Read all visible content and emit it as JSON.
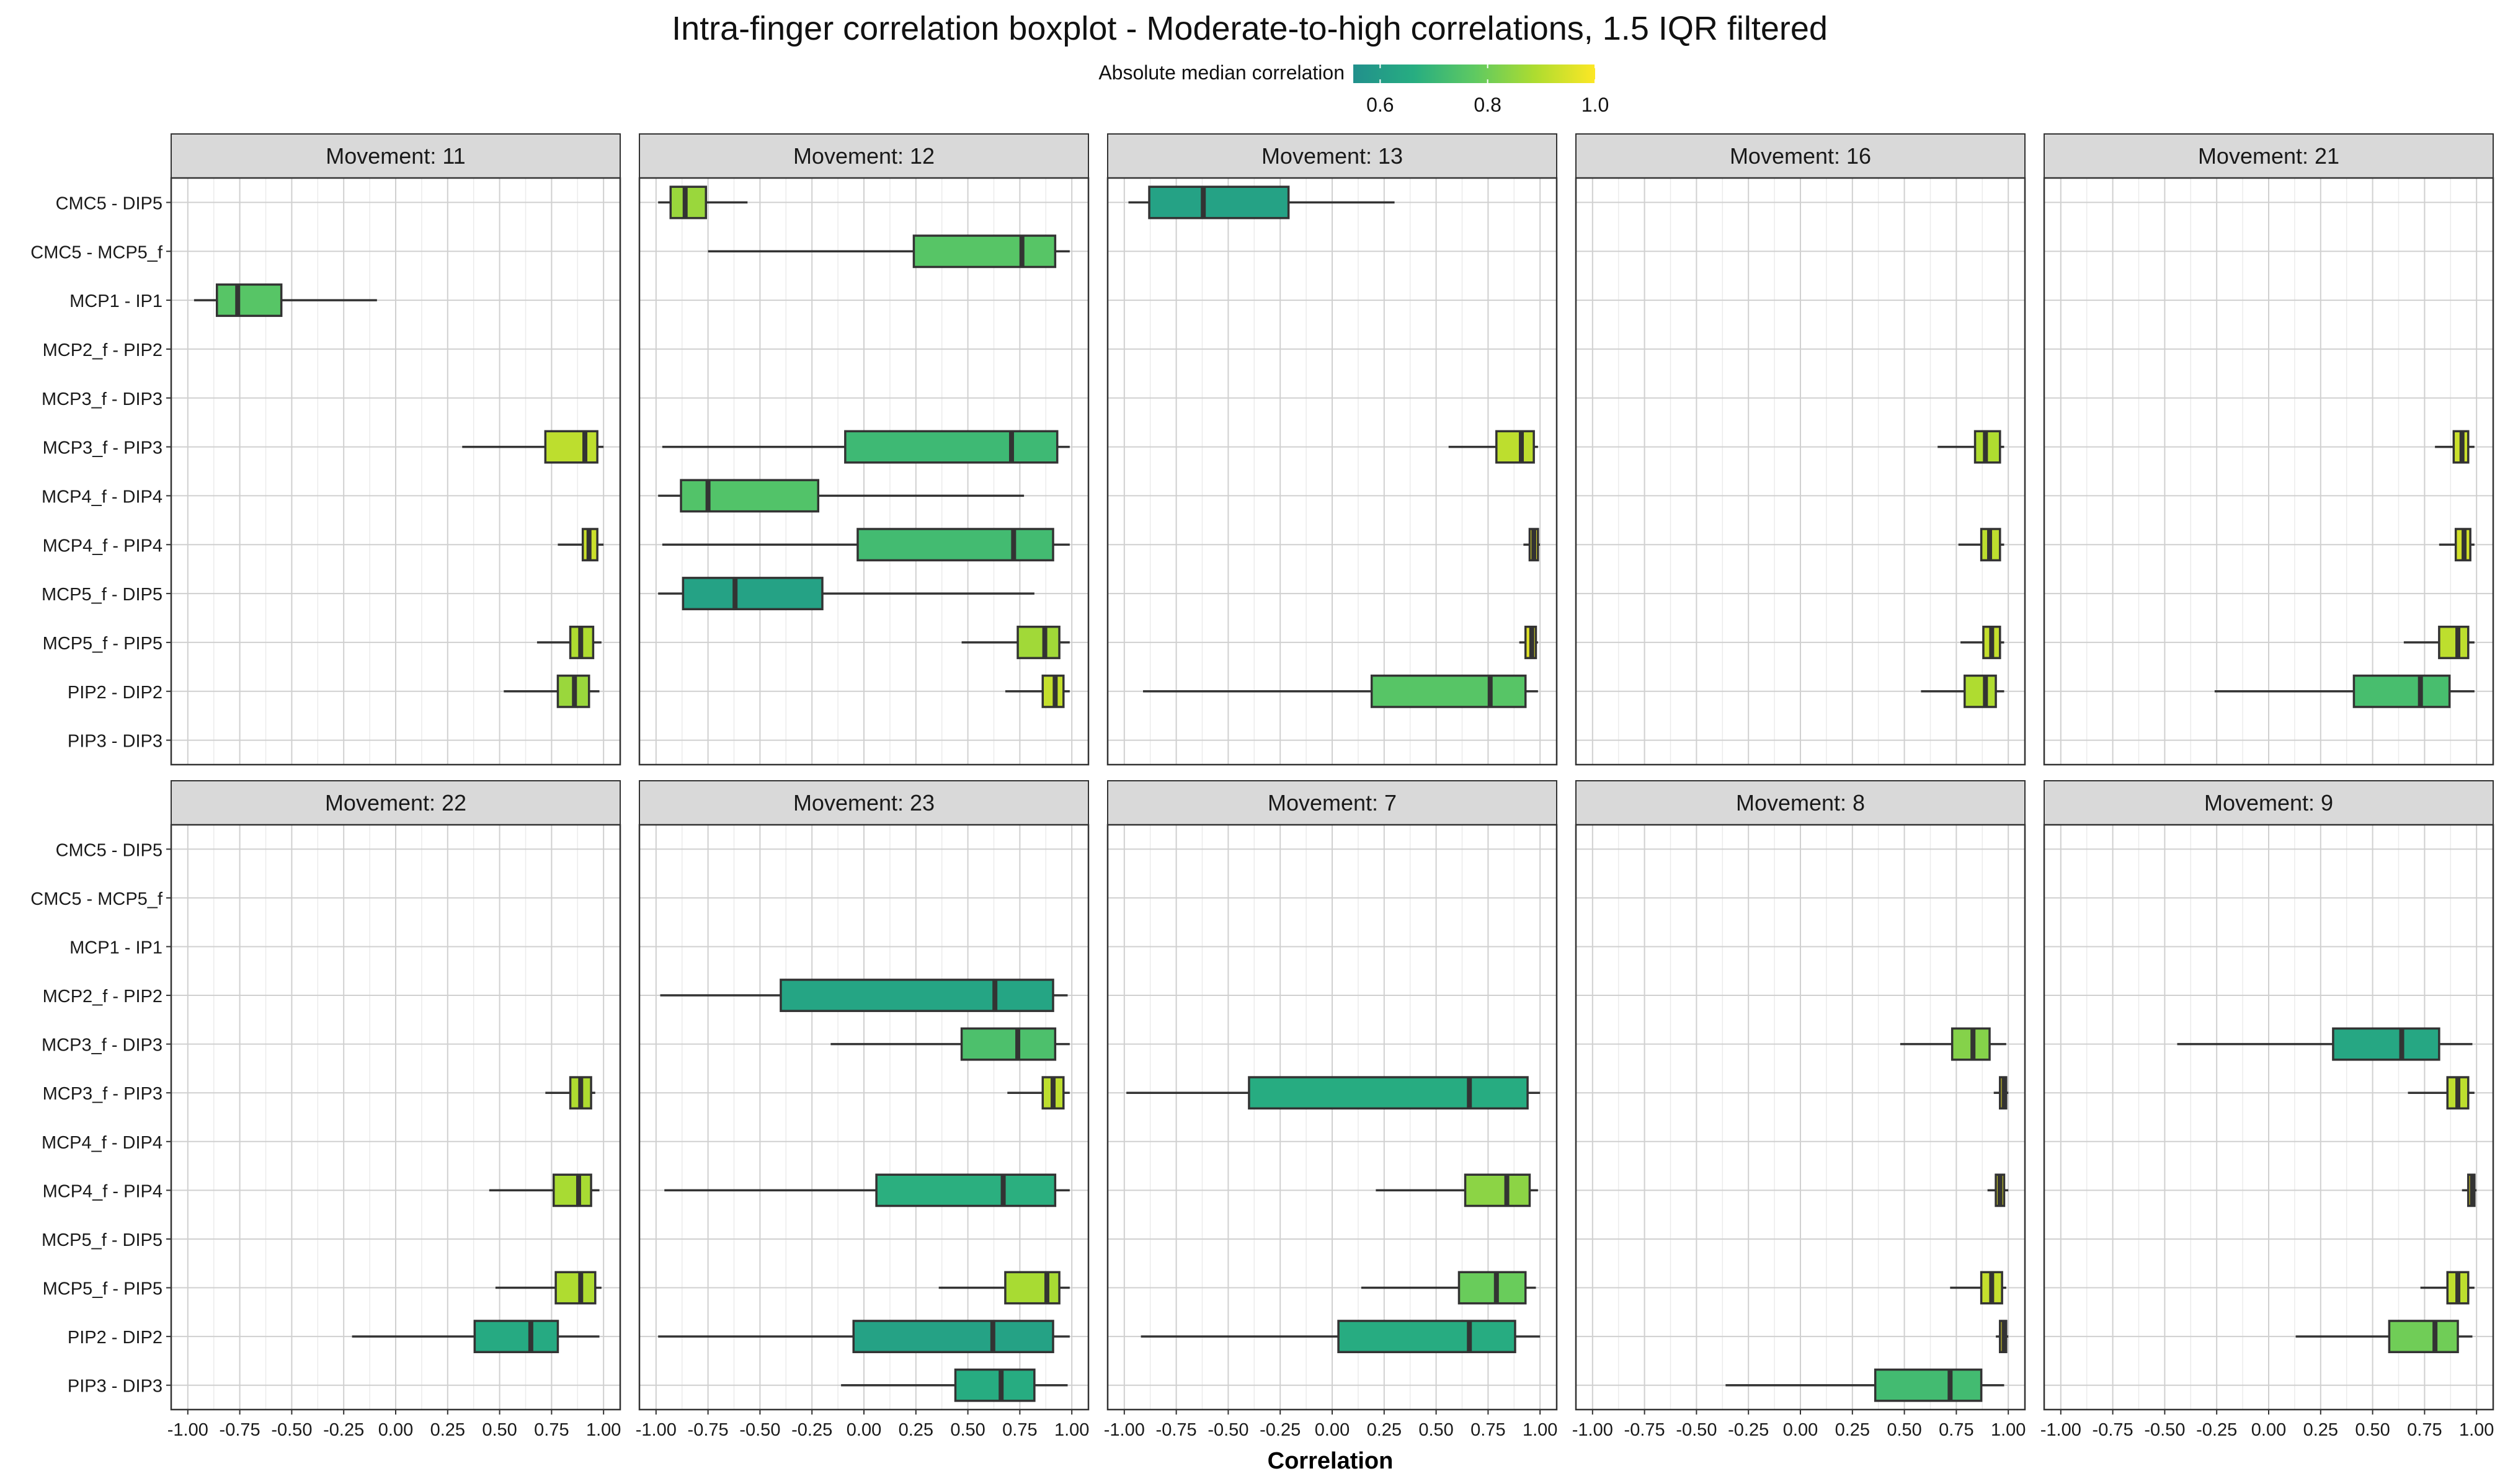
{
  "chart_data": {
    "type": "boxplot",
    "title": "Intra-finger correlation boxplot - Moderate-to-high correlations, 1.5 IQR filtered",
    "xlabel": "Correlation",
    "ylabel": "",
    "xlim": [
      -1.08,
      1.08
    ],
    "x_ticks": [
      "-1.00",
      "-0.75",
      "-0.50",
      "-0.25",
      "0.00",
      "0.25",
      "0.50",
      "0.75",
      "1.00"
    ],
    "grid": true,
    "legend": {
      "title": "Absolute median correlation",
      "placement": "top-center",
      "range": [
        0.55,
        1.0
      ],
      "ticks": [
        "0.6",
        "0.8",
        "1.0"
      ],
      "colors": [
        "#21908c",
        "#27ad81",
        "#5ec962",
        "#addc30",
        "#fde725"
      ]
    },
    "strip_fill": "#d9d9d9",
    "box_outline": "#333333",
    "categories": [
      "PIP3 - DIP3",
      "PIP2 - DIP2",
      "MCP5_f - PIP5",
      "MCP5_f - DIP5",
      "MCP4_f - PIP4",
      "MCP4_f - DIP4",
      "MCP3_f - PIP3",
      "MCP3_f - DIP3",
      "MCP2_f - PIP2",
      "MCP1 - IP1",
      "CMC5 - MCP5_f",
      "CMC5 - DIP5"
    ],
    "panels": [
      {
        "name": "Movement: 11",
        "boxes": [
          {
            "cat": "PIP2 - DIP2",
            "stats": [
              0.52,
              0.78,
              0.86,
              0.93,
              0.98
            ]
          },
          {
            "cat": "MCP5_f - PIP5",
            "stats": [
              0.68,
              0.84,
              0.89,
              0.95,
              0.99
            ]
          },
          {
            "cat": "MCP4_f - PIP4",
            "stats": [
              0.78,
              0.9,
              0.93,
              0.97,
              1.0
            ]
          },
          {
            "cat": "MCP3_f - PIP3",
            "stats": [
              0.32,
              0.72,
              0.91,
              0.97,
              1.0
            ]
          },
          {
            "cat": "MCP1 - IP1",
            "stats": [
              -0.97,
              -0.86,
              -0.76,
              -0.55,
              -0.09
            ]
          }
        ]
      },
      {
        "name": "Movement: 12",
        "boxes": [
          {
            "cat": "PIP2 - DIP2",
            "stats": [
              0.68,
              0.86,
              0.92,
              0.96,
              0.99
            ]
          },
          {
            "cat": "MCP5_f - PIP5",
            "stats": [
              0.47,
              0.74,
              0.87,
              0.94,
              0.99
            ]
          },
          {
            "cat": "MCP5_f - DIP5",
            "stats": [
              -0.99,
              -0.87,
              -0.62,
              -0.2,
              0.82
            ]
          },
          {
            "cat": "MCP4_f - PIP4",
            "stats": [
              -0.97,
              -0.03,
              0.72,
              0.91,
              0.99
            ]
          },
          {
            "cat": "MCP4_f - DIP4",
            "stats": [
              -0.99,
              -0.88,
              -0.75,
              -0.22,
              0.77
            ]
          },
          {
            "cat": "MCP3_f - PIP3",
            "stats": [
              -0.97,
              -0.09,
              0.71,
              0.93,
              0.99
            ]
          },
          {
            "cat": "CMC5 - MCP5_f",
            "stats": [
              -0.75,
              0.24,
              0.76,
              0.92,
              0.99
            ]
          },
          {
            "cat": "CMC5 - DIP5",
            "stats": [
              -0.99,
              -0.93,
              -0.86,
              -0.76,
              -0.56
            ]
          }
        ]
      },
      {
        "name": "Movement: 13",
        "boxes": [
          {
            "cat": "PIP2 - DIP2",
            "stats": [
              -0.91,
              0.19,
              0.76,
              0.93,
              0.99
            ]
          },
          {
            "cat": "MCP5_f - PIP5",
            "stats": [
              0.9,
              0.93,
              0.96,
              0.98,
              0.99
            ]
          },
          {
            "cat": "MCP4_f - PIP4",
            "stats": [
              0.92,
              0.95,
              0.97,
              0.99,
              1.0
            ]
          },
          {
            "cat": "MCP3_f - PIP3",
            "stats": [
              0.56,
              0.79,
              0.91,
              0.97,
              0.99
            ]
          },
          {
            "cat": "CMC5 - DIP5",
            "stats": [
              -0.98,
              -0.88,
              -0.62,
              -0.21,
              0.3
            ]
          }
        ]
      },
      {
        "name": "Movement: 16",
        "boxes": [
          {
            "cat": "PIP2 - DIP2",
            "stats": [
              0.58,
              0.79,
              0.89,
              0.94,
              0.98
            ]
          },
          {
            "cat": "MCP5_f - PIP5",
            "stats": [
              0.77,
              0.88,
              0.92,
              0.96,
              0.98
            ]
          },
          {
            "cat": "MCP4_f - PIP4",
            "stats": [
              0.76,
              0.87,
              0.91,
              0.96,
              0.98
            ]
          },
          {
            "cat": "MCP3_f - PIP3",
            "stats": [
              0.66,
              0.84,
              0.89,
              0.96,
              0.98
            ]
          }
        ]
      },
      {
        "name": "Movement: 21",
        "boxes": [
          {
            "cat": "PIP2 - DIP2",
            "stats": [
              -0.26,
              0.41,
              0.73,
              0.87,
              0.99
            ]
          },
          {
            "cat": "MCP5_f - PIP5",
            "stats": [
              0.65,
              0.82,
              0.91,
              0.96,
              0.99
            ]
          },
          {
            "cat": "MCP4_f - PIP4",
            "stats": [
              0.82,
              0.9,
              0.94,
              0.97,
              0.99
            ]
          },
          {
            "cat": "MCP3_f - PIP3",
            "stats": [
              0.8,
              0.89,
              0.93,
              0.96,
              0.99
            ]
          }
        ]
      },
      {
        "name": "Movement: 22",
        "boxes": [
          {
            "cat": "PIP3 - DIP3",
            "stats": [],
            "whisker_only": true
          },
          {
            "cat": "PIP2 - DIP2",
            "stats": [
              -0.21,
              0.38,
              0.65,
              0.78,
              0.98
            ]
          },
          {
            "cat": "MCP5_f - PIP5",
            "stats": [
              0.48,
              0.77,
              0.89,
              0.96,
              0.99
            ]
          },
          {
            "cat": "MCP4_f - PIP4",
            "stats": [
              0.45,
              0.76,
              0.88,
              0.94,
              0.98
            ]
          },
          {
            "cat": "MCP3_f - PIP3",
            "stats": [
              0.72,
              0.84,
              0.89,
              0.94,
              0.96
            ]
          }
        ]
      },
      {
        "name": "Movement: 23",
        "boxes": [
          {
            "cat": "PIP3 - DIP3",
            "stats": [
              -0.11,
              0.44,
              0.66,
              0.82,
              0.98
            ]
          },
          {
            "cat": "PIP2 - DIP2",
            "stats": [
              -0.99,
              -0.05,
              0.62,
              0.91,
              0.99
            ]
          },
          {
            "cat": "MCP5_f - PIP5",
            "stats": [
              0.36,
              0.68,
              0.88,
              0.94,
              0.99
            ]
          },
          {
            "cat": "MCP4_f - PIP4",
            "stats": [
              -0.96,
              0.06,
              0.67,
              0.92,
              0.99
            ]
          },
          {
            "cat": "MCP3_f - PIP3",
            "stats": [
              0.69,
              0.86,
              0.91,
              0.96,
              0.99
            ]
          },
          {
            "cat": "MCP3_f - DIP3",
            "stats": [
              -0.16,
              0.47,
              0.74,
              0.92,
              0.99
            ]
          },
          {
            "cat": "MCP2_f - PIP2",
            "stats": [
              -0.98,
              -0.4,
              0.63,
              0.91,
              0.98
            ]
          }
        ]
      },
      {
        "name": "Movement: 7",
        "boxes": [
          {
            "cat": "PIP2 - DIP2",
            "stats": [
              -0.92,
              0.03,
              0.66,
              0.88,
              1.0
            ]
          },
          {
            "cat": "MCP5_f - PIP5",
            "stats": [
              0.14,
              0.61,
              0.79,
              0.93,
              0.98
            ]
          },
          {
            "cat": "MCP4_f - PIP4",
            "stats": [
              0.21,
              0.64,
              0.84,
              0.95,
              0.99
            ]
          },
          {
            "cat": "MCP3_f - PIP3",
            "stats": [
              -0.99,
              -0.4,
              0.66,
              0.94,
              1.0
            ]
          }
        ]
      },
      {
        "name": "Movement: 8",
        "boxes": [
          {
            "cat": "PIP3 - DIP3",
            "stats": [
              -0.36,
              0.36,
              0.72,
              0.87,
              0.98
            ]
          },
          {
            "cat": "PIP2 - DIP2",
            "stats": [
              0.94,
              0.96,
              0.98,
              0.99,
              1.0
            ]
          },
          {
            "cat": "MCP5_f - PIP5",
            "stats": [
              0.72,
              0.87,
              0.92,
              0.97,
              0.99
            ]
          },
          {
            "cat": "MCP4_f - PIP4",
            "stats": [
              0.9,
              0.94,
              0.96,
              0.98,
              1.0
            ]
          },
          {
            "cat": "MCP3_f - PIP3",
            "stats": [
              0.93,
              0.96,
              0.98,
              0.99,
              1.0
            ]
          },
          {
            "cat": "MCP3_f - DIP3",
            "stats": [
              0.48,
              0.73,
              0.83,
              0.91,
              0.99
            ]
          }
        ]
      },
      {
        "name": "Movement: 9",
        "boxes": [
          {
            "cat": "PIP2 - DIP2",
            "stats": [
              0.13,
              0.58,
              0.8,
              0.91,
              0.98
            ]
          },
          {
            "cat": "MCP5_f - PIP5",
            "stats": [
              0.73,
              0.86,
              0.91,
              0.96,
              0.99
            ]
          },
          {
            "cat": "MCP4_f - PIP4",
            "stats": [
              0.93,
              0.96,
              0.98,
              0.99,
              1.0
            ]
          },
          {
            "cat": "MCP3_f - PIP3",
            "stats": [
              0.67,
              0.86,
              0.91,
              0.96,
              0.99
            ]
          },
          {
            "cat": "MCP3_f - DIP3",
            "stats": [
              -0.44,
              0.31,
              0.64,
              0.82,
              0.98
            ]
          }
        ]
      }
    ]
  }
}
